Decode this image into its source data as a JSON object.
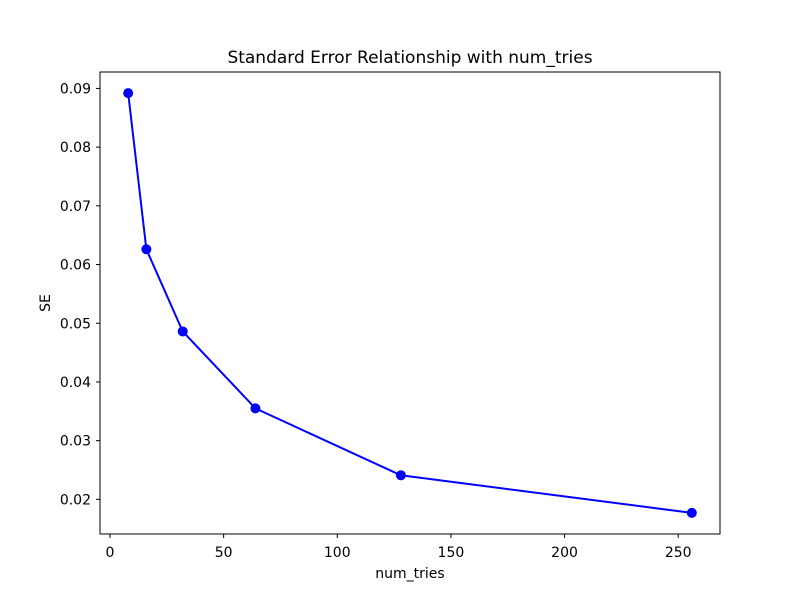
{
  "figure": {
    "background": "#ffffff",
    "frame_color": "#000000"
  },
  "chart_data": {
    "type": "line",
    "title": "Standard Error Relationship with num_tries",
    "xlabel": "num_tries",
    "ylabel": "SE",
    "x": [
      8,
      16,
      32,
      64,
      128,
      256
    ],
    "y": [
      0.0892,
      0.0626,
      0.0486,
      0.0355,
      0.0241,
      0.0177
    ],
    "line_color": "#0000ff",
    "marker": "o",
    "marker_radius": 5,
    "line_width": 2,
    "xlim": [
      -4.4,
      268.4
    ],
    "ylim": [
      0.0141,
      0.0928
    ],
    "xtick_values": [
      0,
      50,
      100,
      150,
      200,
      250
    ],
    "xtick_labels": [
      "0",
      "50",
      "100",
      "150",
      "200",
      "250"
    ],
    "ytick_values": [
      0.02,
      0.03,
      0.04,
      0.05,
      0.06,
      0.07,
      0.08,
      0.09
    ],
    "ytick_labels": [
      "0.02",
      "0.03",
      "0.04",
      "0.05",
      "0.06",
      "0.07",
      "0.08",
      "0.09"
    ],
    "grid": false,
    "legend": false
  }
}
